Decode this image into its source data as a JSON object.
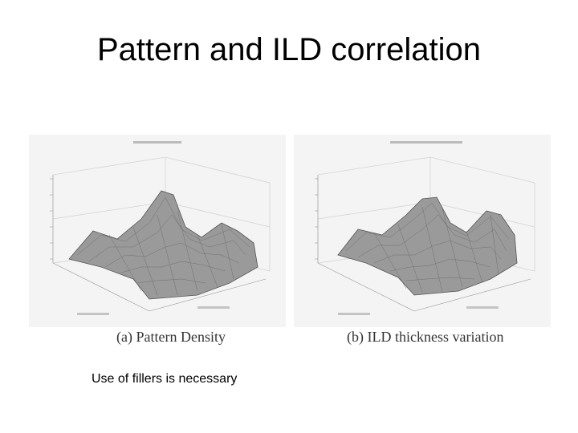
{
  "slide": {
    "title": "Pattern and ILD correlation",
    "note": "Use of fillers is necessary"
  },
  "figures": [
    {
      "caption": "(a) Pattern Density"
    },
    {
      "caption": "(b) ILD thickness variation"
    }
  ],
  "colors": {
    "surface": "#9a9a9a",
    "mesh": "#555555",
    "background": "#ffffff"
  }
}
